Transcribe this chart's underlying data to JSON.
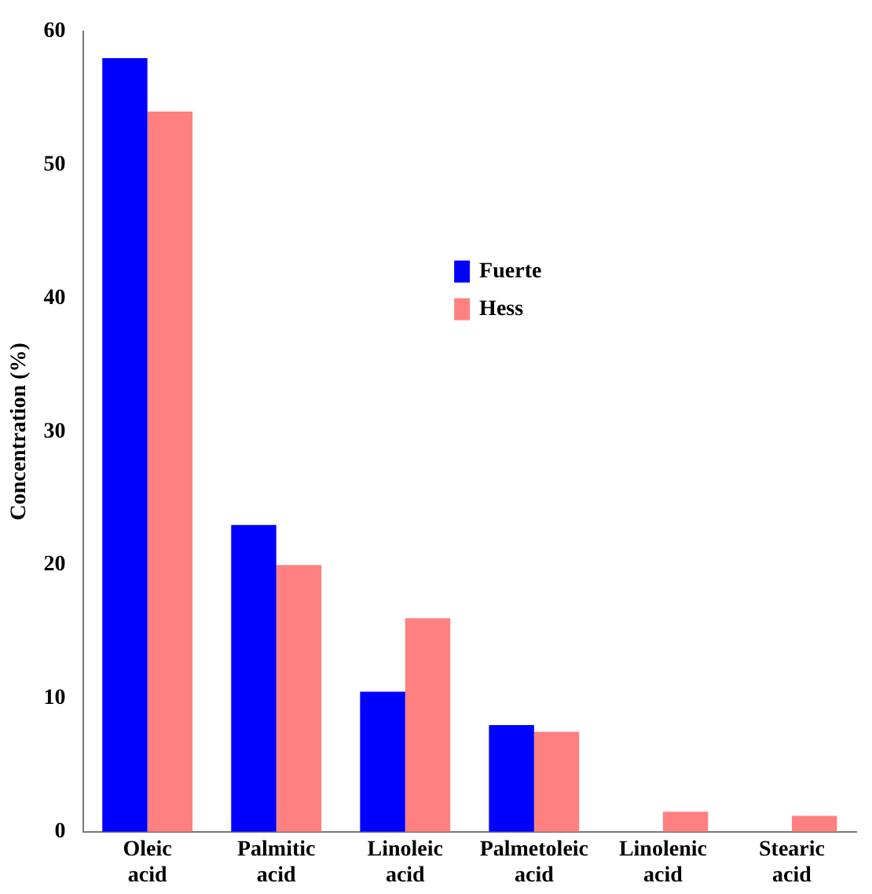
{
  "chart_data": {
    "type": "bar",
    "ylabel": "Concentration (%)",
    "categories": [
      "Oleic acid",
      "Palmitic acid",
      "Linoleic acid",
      "Palmetoleic acid",
      "Linolenic acid",
      "Stearic acid"
    ],
    "series": [
      {
        "name": "Fuerte",
        "color": "#0000ff",
        "values": [
          58,
          23,
          10.5,
          8,
          0,
          0
        ]
      },
      {
        "name": "Hess",
        "color": "#ff8080",
        "values": [
          54,
          20,
          16,
          7.5,
          1.5,
          1.2
        ]
      }
    ],
    "ylim": [
      0,
      60
    ],
    "yticks": [
      0,
      10,
      20,
      30,
      40,
      50,
      60
    ],
    "grid": false,
    "legend": "center"
  }
}
